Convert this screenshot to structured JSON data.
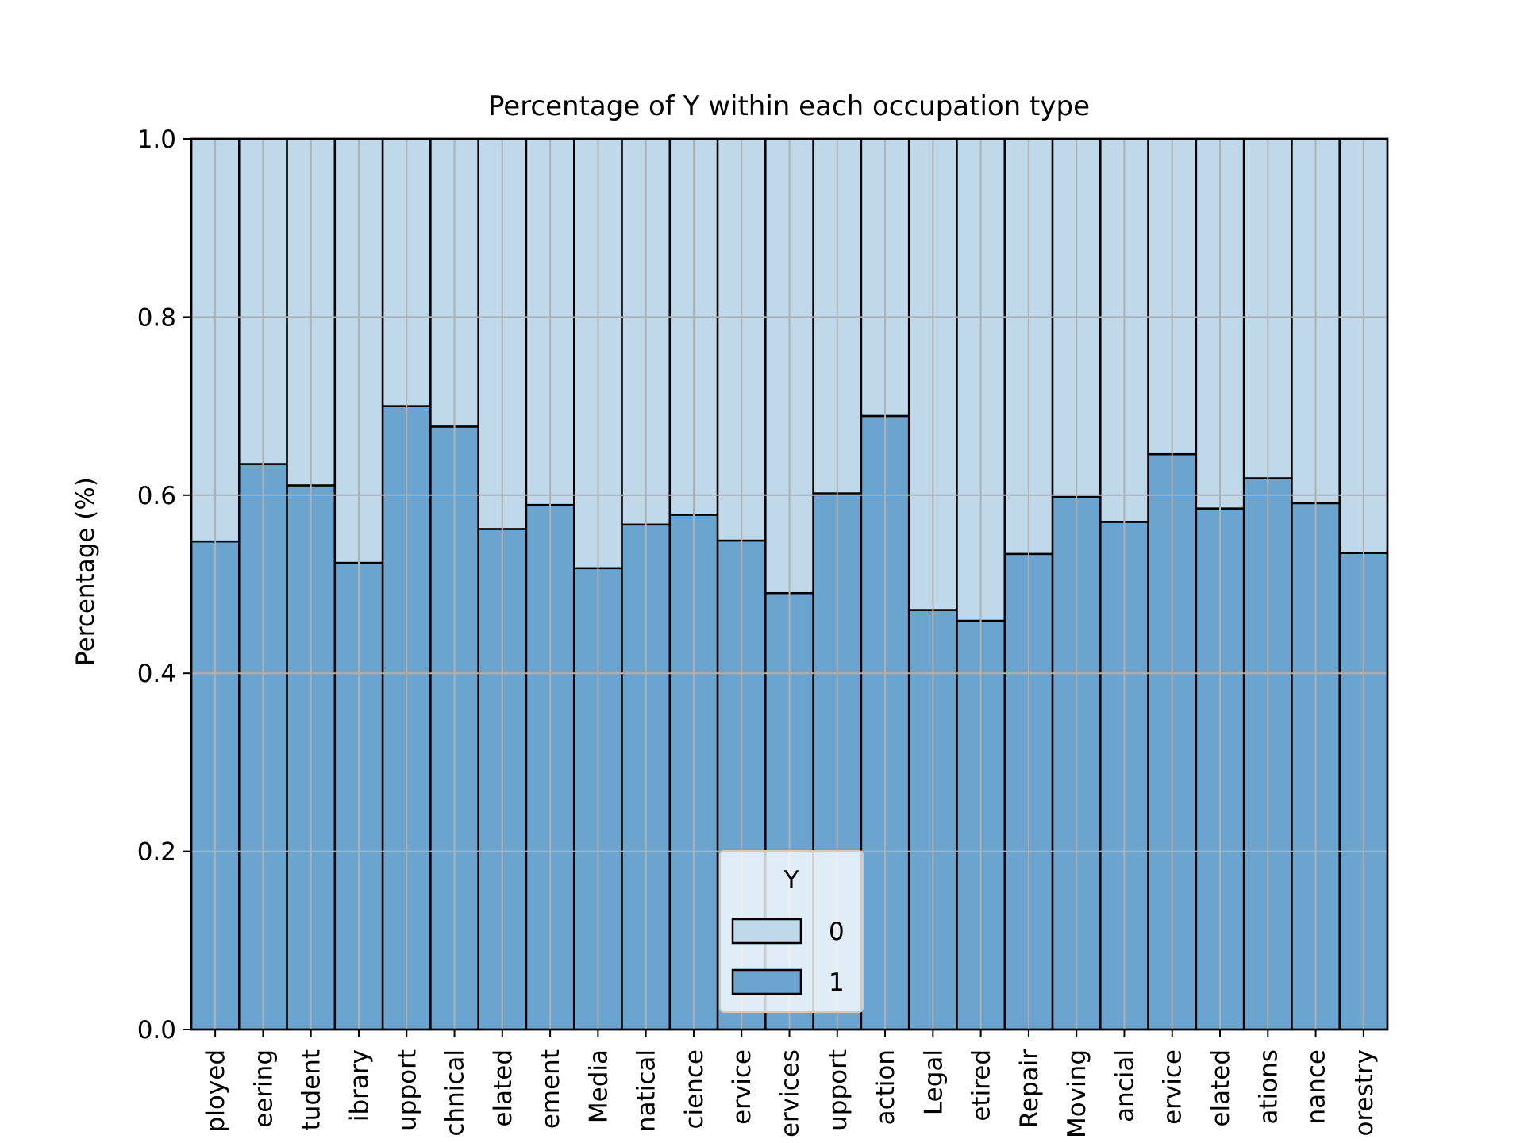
{
  "chart_data": {
    "type": "bar",
    "stacked": true,
    "title": "Percentage of Y within each occupation type",
    "xlabel": "",
    "ylabel": "Percentage (%)",
    "ylim": [
      0,
      1.0
    ],
    "yticks": [
      "0.0",
      "0.2",
      "0.4",
      "0.6",
      "0.8",
      "1.0"
    ],
    "grid": true,
    "categories": [
      "ployed",
      "eering",
      "tudent",
      "ibrary",
      "upport",
      "chnical",
      "elated",
      "ement",
      "Media",
      "natical",
      "cience",
      "ervice",
      "ervices",
      "upport",
      "action",
      "Legal",
      "etired",
      "Repair",
      "Moving",
      "ancial",
      "ervice",
      "elated",
      "ations",
      "nance",
      "orestry"
    ],
    "series": [
      {
        "name": "1",
        "color": "#6aa4cf",
        "values": [
          0.548,
          0.635,
          0.611,
          0.524,
          0.7,
          0.677,
          0.562,
          0.589,
          0.518,
          0.567,
          0.578,
          0.549,
          0.49,
          0.602,
          0.689,
          0.471,
          0.459,
          0.534,
          0.598,
          0.57,
          0.646,
          0.585,
          0.619,
          0.591,
          0.535
        ]
      },
      {
        "name": "0",
        "color": "#bfd9eb",
        "values": [
          0.452,
          0.365,
          0.389,
          0.476,
          0.3,
          0.323,
          0.438,
          0.411,
          0.482,
          0.433,
          0.422,
          0.451,
          0.51,
          0.398,
          0.311,
          0.529,
          0.541,
          0.466,
          0.402,
          0.43,
          0.354,
          0.415,
          0.381,
          0.409,
          0.465
        ]
      }
    ],
    "legend": {
      "title": "Y",
      "placement": "lower center",
      "entries": [
        {
          "label": "0",
          "color": "#bfd9eb"
        },
        {
          "label": "1",
          "color": "#6aa4cf"
        }
      ]
    }
  }
}
